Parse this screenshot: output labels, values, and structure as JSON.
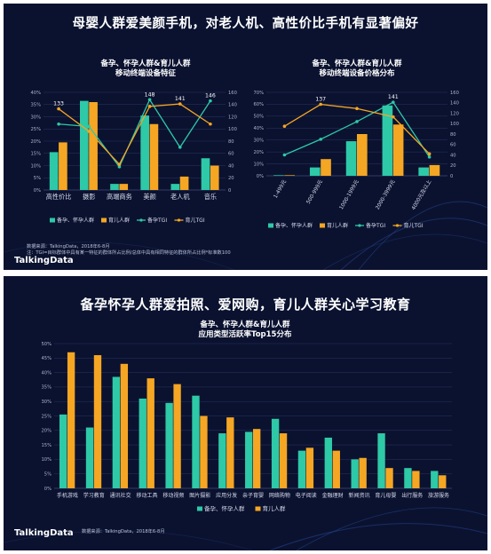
{
  "slide1": {
    "headline": "母婴人群爱美颜手机，对老人机、高性价比手机有显著偏好",
    "source_line1": "数据来源：TalkingData，2018年6-8月",
    "source_line2": "注：TGI=目标群体中具有某一特征的群体所占比例/总体中具有相同特征的群体所占比例*标准数100",
    "brand": "TalkingData"
  },
  "slide2": {
    "headline": "备孕怀孕人群爱拍照、爱网购，育儿人群关心学习教育",
    "source": "数据来源：TalkingData，2018年6-8月",
    "brand": "TalkingData"
  },
  "colors": {
    "series_a": "#2ec9a7",
    "series_b": "#f5a623",
    "background": "#0b1230"
  },
  "chart_data": [
    {
      "id": "features",
      "type": "bar",
      "title_line1": "备孕、怀孕人群&育儿人群",
      "title_line2": "移动终端设备特征",
      "categories": [
        "高性价比",
        "摄影",
        "高端商务",
        "美颜",
        "老人机",
        "音乐"
      ],
      "ylim": [
        0,
        40
      ],
      "yticks": [
        "0%",
        "5%",
        "10%",
        "15%",
        "20%",
        "25%",
        "30%",
        "35%",
        "40%"
      ],
      "y2lim": [
        0,
        160
      ],
      "y2ticks": [
        "0",
        "20",
        "40",
        "60",
        "80",
        "100",
        "120",
        "140",
        "160"
      ],
      "series": [
        {
          "name": "备孕、怀孕人群",
          "kind": "bar",
          "axis": "left",
          "values": [
            15.5,
            36.5,
            2.5,
            30.5,
            2.5,
            13
          ]
        },
        {
          "name": "育儿人群",
          "kind": "bar",
          "axis": "left",
          "values": [
            19.5,
            36,
            2.5,
            27,
            5.5,
            10
          ]
        },
        {
          "name": "备孕TGI",
          "kind": "line",
          "axis": "right",
          "values": [
            108,
            104,
            38,
            148,
            70,
            146
          ]
        },
        {
          "name": "育儿TGI",
          "kind": "line",
          "axis": "right",
          "values": [
            133,
            96,
            42,
            137,
            141,
            108
          ]
        }
      ],
      "data_labels": [
        {
          "series": 3,
          "index": 0,
          "text": "133"
        },
        {
          "series": 2,
          "index": 3,
          "text": "148"
        },
        {
          "series": 3,
          "index": 4,
          "text": "141"
        },
        {
          "series": 2,
          "index": 5,
          "text": "146"
        }
      ]
    },
    {
      "id": "price",
      "type": "bar",
      "title_line1": "备孕、怀孕人群&育儿人群",
      "title_line2": "移动终端设备价格分布",
      "categories": [
        "1-499元",
        "500-999元",
        "1000-1999元",
        "2000-3999元",
        "4000元及以上"
      ],
      "ylim": [
        0,
        70
      ],
      "yticks": [
        "0%",
        "10%",
        "20%",
        "30%",
        "40%",
        "50%",
        "60%",
        "70%"
      ],
      "y2lim": [
        0,
        160
      ],
      "y2ticks": [
        "0",
        "20",
        "40",
        "60",
        "80",
        "100",
        "120",
        "140",
        "160"
      ],
      "series": [
        {
          "name": "备孕、怀孕人群",
          "kind": "bar",
          "axis": "left",
          "values": [
            0.5,
            7,
            29,
            59,
            7
          ]
        },
        {
          "name": "育儿人群",
          "kind": "bar",
          "axis": "left",
          "values": [
            0.5,
            14,
            35,
            43,
            9
          ]
        },
        {
          "name": "备孕TGI",
          "kind": "line",
          "axis": "right",
          "values": [
            40,
            70,
            104,
            141,
            36
          ]
        },
        {
          "name": "育儿TGI",
          "kind": "line",
          "axis": "right",
          "values": [
            95,
            137,
            129,
            113,
            42
          ]
        }
      ],
      "data_labels": [
        {
          "series": 3,
          "index": 1,
          "text": "137"
        },
        {
          "series": 2,
          "index": 3,
          "text": "141"
        }
      ]
    },
    {
      "id": "apps",
      "type": "bar",
      "title_line1": "备孕、怀孕人群&育儿人群",
      "title_line2": "应用类型活跃率Top15分布",
      "categories": [
        "手机游戏",
        "学习教育",
        "通讯社交",
        "移动工具",
        "移动视频",
        "图片摄影",
        "应用分发",
        "亲子育婴",
        "网络购物",
        "电子阅读",
        "金融理财",
        "新闻资讯",
        "育儿母婴",
        "出行服务",
        "旅游服务"
      ],
      "ylim": [
        0,
        50
      ],
      "yticks": [
        "0%",
        "5%",
        "10%",
        "15%",
        "20%",
        "25%",
        "30%",
        "35%",
        "40%",
        "45%",
        "50%"
      ],
      "series": [
        {
          "name": "备孕、怀孕人群",
          "kind": "bar",
          "values": [
            25.5,
            21,
            38.5,
            31,
            29.5,
            32,
            19,
            19.5,
            24,
            13,
            17.5,
            10,
            19,
            7,
            6
          ]
        },
        {
          "name": "育儿人群",
          "kind": "bar",
          "values": [
            47,
            46,
            43,
            38,
            36,
            25,
            24.5,
            20.5,
            19,
            14,
            13,
            10.5,
            7,
            6,
            4.5
          ]
        }
      ]
    }
  ]
}
